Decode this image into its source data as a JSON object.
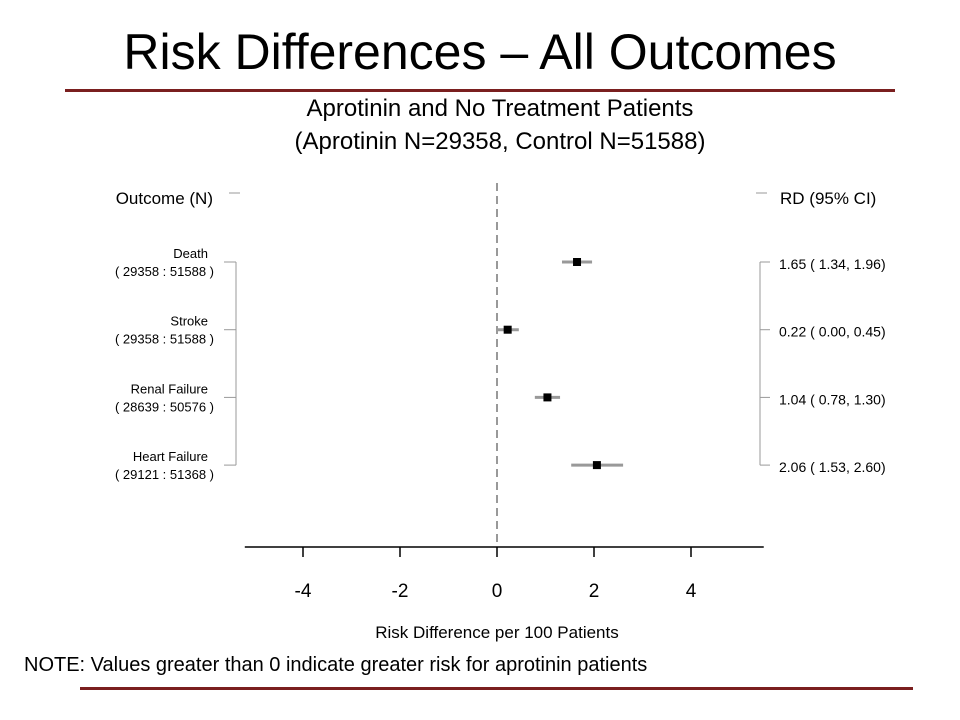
{
  "slide": {
    "title": "Risk Differences – All Outcomes",
    "note": "NOTE: Values greater than 0 indicate greater risk for aprotinin patients"
  },
  "colors": {
    "rule": "#7a1f1f",
    "ci_line": "#999999",
    "marker": "#000000",
    "reference_line": "#999999"
  },
  "chart_data": {
    "type": "forest",
    "title": "Aprotinin and No Treatment Patients",
    "subtitle": "(Aprotinin N=29358, Control N=51588)",
    "left_header": "Outcome (N)",
    "right_header": "RD (95% CI)",
    "xlabel": "Risk Difference per 100 Patients",
    "xlim": [
      -5.2,
      5.5
    ],
    "xticks": [
      -4,
      -2,
      0,
      2,
      4
    ],
    "xtick_labels": [
      "-4",
      "-2",
      "0",
      "2",
      "4"
    ],
    "reference_line": 0,
    "rows": [
      {
        "name": "Death",
        "n_label": "( 29358  :  51588 )",
        "rd": 1.65,
        "lo": 1.34,
        "hi": 1.96,
        "ci_label": "1.65 ( 1.34, 1.96)"
      },
      {
        "name": "Stroke",
        "n_label": "( 29358  :  51588 )",
        "rd": 0.22,
        "lo": 0.0,
        "hi": 0.45,
        "ci_label": "0.22 ( 0.00, 0.45)"
      },
      {
        "name": "Renal Failure",
        "n_label": "( 28639  :  50576 )",
        "rd": 1.04,
        "lo": 0.78,
        "hi": 1.3,
        "ci_label": "1.04 ( 0.78, 1.30)"
      },
      {
        "name": "Heart Failure",
        "n_label": "( 29121  :  51368 )",
        "rd": 2.06,
        "lo": 1.53,
        "hi": 2.6,
        "ci_label": "2.06 ( 1.53, 2.60)"
      }
    ]
  }
}
